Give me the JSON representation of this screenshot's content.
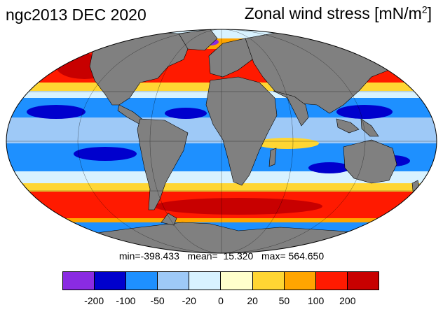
{
  "header": {
    "left_title": "ngc2013 DEC 2020",
    "right_title_main": "Zonal wind stress [mN/m",
    "right_title_sup": "2",
    "right_title_end": "]"
  },
  "stats": {
    "text": "min=-398.433   mean=  15.320   max= 564.650"
  },
  "colorbar": {
    "colors": [
      "#8a2be2",
      "#0000cd",
      "#1e90ff",
      "#9ec9f7",
      "#d8f2ff",
      "#ffffcc",
      "#ffd633",
      "#ffa500",
      "#ff1a00",
      "#c80000"
    ],
    "tick_labels": [
      "-200",
      "-100",
      "-50",
      "-20",
      "0",
      "20",
      "50",
      "100",
      "200"
    ]
  },
  "map": {
    "projection": "mollweide",
    "land_color": "#808080"
  }
}
